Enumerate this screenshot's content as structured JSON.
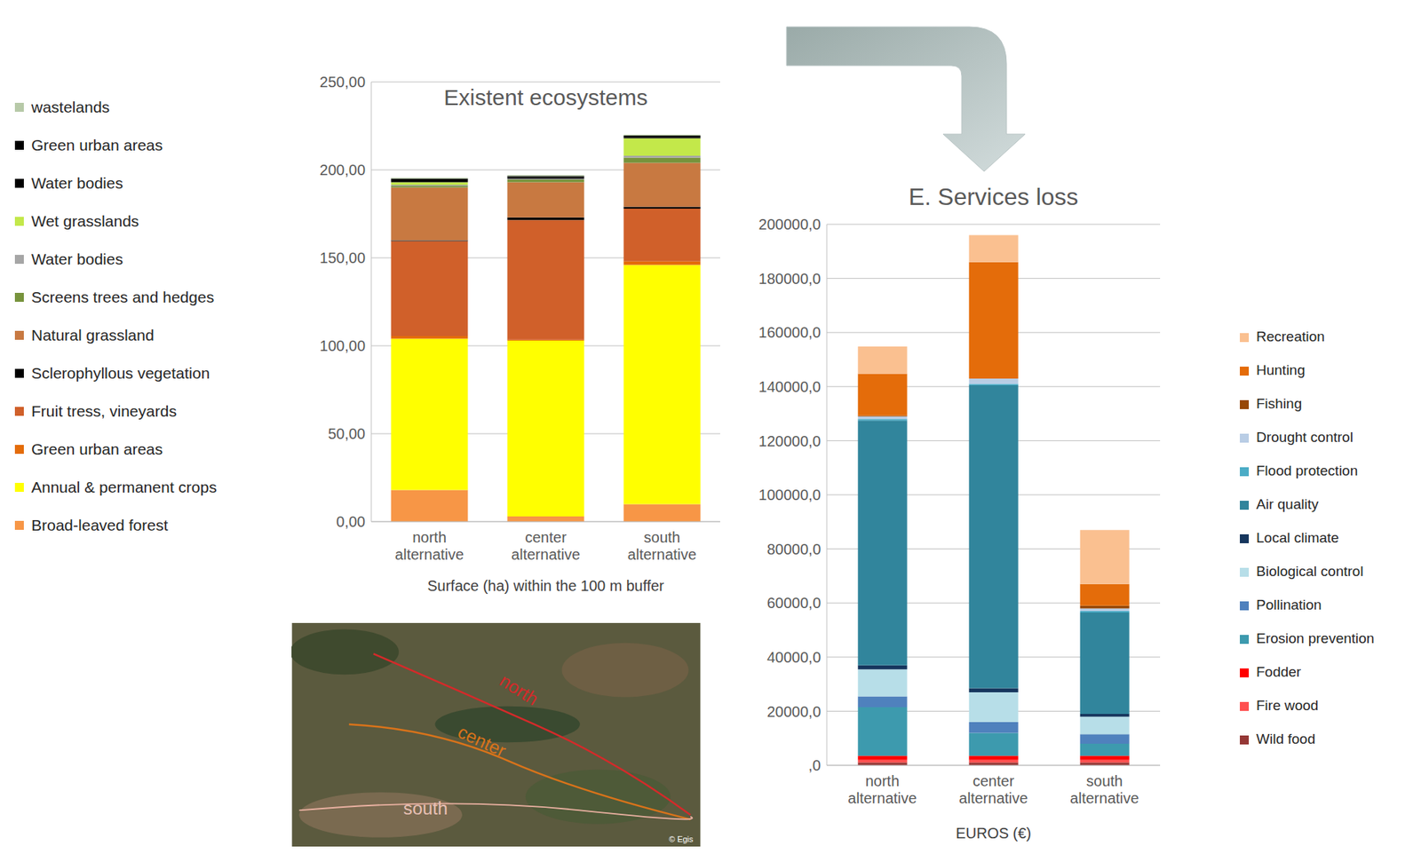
{
  "chart_data": [
    {
      "type": "bar",
      "title": "Existent ecosystems",
      "x_label": "Surface (ha) within the 100 m buffer",
      "categories": [
        "north alternative",
        "center alternative",
        "south alternative"
      ],
      "stacked": true,
      "grid": true,
      "legend": "left",
      "ylim": [
        0,
        250
      ],
      "yticks": [
        {
          "value": 0,
          "label": "0,00"
        },
        {
          "value": 50,
          "label": "50,00"
        },
        {
          "value": 100,
          "label": "100,00"
        },
        {
          "value": 150,
          "label": "150,00"
        },
        {
          "value": 200,
          "label": "200,00"
        },
        {
          "value": 250,
          "label": "250,00"
        }
      ],
      "series": [
        {
          "name": "Broad-leaved forest",
          "color": "#f79646",
          "values": [
            18,
            3,
            10
          ]
        },
        {
          "name": "Annual & permanent crops",
          "color": "#ffff00",
          "values": [
            86,
            100,
            136
          ]
        },
        {
          "name": "Green urban areas",
          "color": "#e46c0a",
          "values": [
            1.5,
            0.5,
            2
          ]
        },
        {
          "name": "Fruit tress, vineyards",
          "color": "#d0602a",
          "values": [
            54,
            68,
            30
          ]
        },
        {
          "name": "Sclerophyllous vegetation",
          "color": "#000000",
          "values": [
            0.5,
            1.5,
            1
          ]
        },
        {
          "name": "Natural grassland",
          "color": "#c87941",
          "values": [
            30,
            20,
            25
          ]
        },
        {
          "name": "Screens trees and hedges",
          "color": "#77933c",
          "values": [
            1,
            1.5,
            3
          ]
        },
        {
          "name": "Water bodies",
          "color": "#a6a6a6",
          "values": [
            0.5,
            0.5,
            1
          ]
        },
        {
          "name": "Wet grasslands",
          "color": "#c3e84a",
          "values": [
            1.5,
            0,
            10
          ]
        },
        {
          "name": "Water bodies",
          "color": "#000000",
          "values": [
            1.5,
            1,
            1
          ]
        },
        {
          "name": "Green urban areas",
          "color": "#000000",
          "values": [
            0.5,
            0.5,
            0.5
          ]
        },
        {
          "name": "wastelands",
          "color": "#b7c9a8",
          "values": [
            0.5,
            0.5,
            0.5
          ]
        }
      ]
    },
    {
      "type": "bar",
      "title": "E. Services loss",
      "x_label": "EUROS (€)",
      "categories": [
        "north alternative",
        "center alternative",
        "south alternative"
      ],
      "stacked": true,
      "grid": true,
      "legend": "right",
      "ylim": [
        0,
        200000
      ],
      "yticks": [
        {
          "value": 0,
          "label": ",0"
        },
        {
          "value": 20000,
          "label": "20000,0"
        },
        {
          "value": 40000,
          "label": "40000,0"
        },
        {
          "value": 60000,
          "label": "60000,0"
        },
        {
          "value": 80000,
          "label": "80000,0"
        },
        {
          "value": 100000,
          "label": "100000,0"
        },
        {
          "value": 120000,
          "label": "120000,0"
        },
        {
          "value": 140000,
          "label": "140000,0"
        },
        {
          "value": 160000,
          "label": "160000,0"
        },
        {
          "value": 180000,
          "label": "180000,0"
        },
        {
          "value": 200000,
          "label": "200000,0"
        }
      ],
      "series": [
        {
          "name": "Wild food",
          "color": "#953735",
          "values": [
            1000,
            1000,
            1000
          ]
        },
        {
          "name": "Fire wood",
          "color": "#ff5050",
          "values": [
            1000,
            1000,
            1000
          ]
        },
        {
          "name": "Fodder",
          "color": "#ff0000",
          "values": [
            1500,
            1500,
            1500
          ]
        },
        {
          "name": "Erosion prevention",
          "color": "#3d9aae",
          "values": [
            18000,
            8500,
            4500
          ]
        },
        {
          "name": "Pollination",
          "color": "#4f81bd",
          "values": [
            4000,
            4000,
            3500
          ]
        },
        {
          "name": "Biological control",
          "color": "#b7dee8",
          "values": [
            10000,
            11000,
            6500
          ]
        },
        {
          "name": "Local climate",
          "color": "#17375e",
          "values": [
            1500,
            1500,
            1000
          ]
        },
        {
          "name": "Air quality",
          "color": "#31859c",
          "values": [
            90500,
            112000,
            37500
          ]
        },
        {
          "name": "Flood protection",
          "color": "#4bacc6",
          "values": [
            500,
            500,
            500
          ]
        },
        {
          "name": "Drought control",
          "color": "#b9cde5",
          "values": [
            1000,
            2000,
            1000
          ]
        },
        {
          "name": "Fishing",
          "color": "#974706",
          "values": [
            300,
            0,
            1000
          ]
        },
        {
          "name": "Hunting",
          "color": "#e46c0a",
          "values": [
            15500,
            43000,
            8000
          ]
        },
        {
          "name": "Recreation",
          "color": "#fac090",
          "values": [
            10000,
            10000,
            20000
          ]
        }
      ]
    }
  ],
  "map": {
    "labels": [
      "north",
      "center",
      "south"
    ],
    "credit": "© Egis"
  }
}
